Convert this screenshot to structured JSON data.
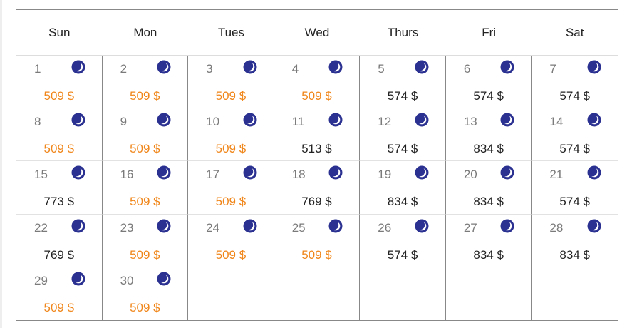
{
  "colors": {
    "cheap": "#f0861a",
    "normal": "#222222",
    "moon": "#2b3190"
  },
  "weekdays": [
    "Sun",
    "Mon",
    "Tues",
    "Wed",
    "Thurs",
    "Fri",
    "Sat"
  ],
  "days": [
    {
      "day": "1",
      "price": "509 $",
      "cheap": true
    },
    {
      "day": "2",
      "price": "509 $",
      "cheap": true
    },
    {
      "day": "3",
      "price": "509 $",
      "cheap": true
    },
    {
      "day": "4",
      "price": "509 $",
      "cheap": true
    },
    {
      "day": "5",
      "price": "574 $",
      "cheap": false
    },
    {
      "day": "6",
      "price": "574 $",
      "cheap": false
    },
    {
      "day": "7",
      "price": "574 $",
      "cheap": false
    },
    {
      "day": "8",
      "price": "509 $",
      "cheap": true
    },
    {
      "day": "9",
      "price": "509 $",
      "cheap": true
    },
    {
      "day": "10",
      "price": "509 $",
      "cheap": true
    },
    {
      "day": "11",
      "price": "513 $",
      "cheap": false
    },
    {
      "day": "12",
      "price": "574 $",
      "cheap": false
    },
    {
      "day": "13",
      "price": "834 $",
      "cheap": false
    },
    {
      "day": "14",
      "price": "574 $",
      "cheap": false
    },
    {
      "day": "15",
      "price": "773 $",
      "cheap": false
    },
    {
      "day": "16",
      "price": "509 $",
      "cheap": true
    },
    {
      "day": "17",
      "price": "509 $",
      "cheap": true
    },
    {
      "day": "18",
      "price": "769 $",
      "cheap": false
    },
    {
      "day": "19",
      "price": "834 $",
      "cheap": false
    },
    {
      "day": "20",
      "price": "834 $",
      "cheap": false
    },
    {
      "day": "21",
      "price": "574 $",
      "cheap": false
    },
    {
      "day": "22",
      "price": "769 $",
      "cheap": false
    },
    {
      "day": "23",
      "price": "509 $",
      "cheap": true
    },
    {
      "day": "24",
      "price": "509 $",
      "cheap": true
    },
    {
      "day": "25",
      "price": "509 $",
      "cheap": true
    },
    {
      "day": "26",
      "price": "574 $",
      "cheap": false
    },
    {
      "day": "27",
      "price": "834 $",
      "cheap": false
    },
    {
      "day": "28",
      "price": "834 $",
      "cheap": false
    },
    {
      "day": "29",
      "price": "509 $",
      "cheap": true
    },
    {
      "day": "30",
      "price": "509 $",
      "cheap": true
    }
  ],
  "day_icon": "moon-icon"
}
